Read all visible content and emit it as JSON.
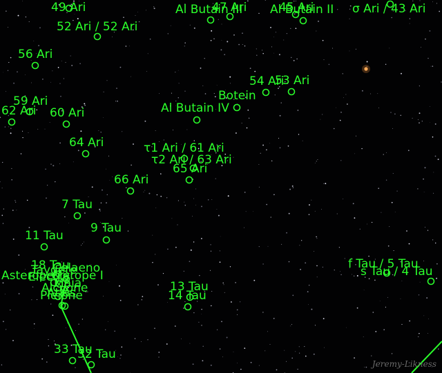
{
  "colors": {
    "label": "#2bff2b",
    "background": "#020203",
    "planet": "#ffb060"
  },
  "labels": [
    "49 Ari",
    "47 Ari",
    "Al Butain III",
    "45 Ari",
    "Al Butain II",
    "σ Ari / 43 Ari",
    "52 Ari / 52 Ari",
    "56 Ari",
    "54 Ari",
    "53 Ari",
    "Botein",
    "59 Ari",
    "62 Ari",
    "60 Ari",
    "Al Butain IV",
    "64 Ari",
    "τ1 Ari / 61 Ari",
    "τ2 Ari / 63 Ari",
    "65 Ari",
    "66 Ari",
    "7 Tau",
    "9 Tau",
    "11 Tau",
    "18 Tau",
    "Taygete",
    "Celaeno",
    "Merope I",
    "Asterope I",
    "Electra",
    "Maia",
    "Alcyone",
    "Atlas",
    "Pleione",
    "f Tau / 5 Tau",
    "s Tau / 4 Tau",
    "13 Tau",
    "14 Tau",
    "33 Tau",
    "32 Tau"
  ],
  "signature": "Jeremy-Likness"
}
